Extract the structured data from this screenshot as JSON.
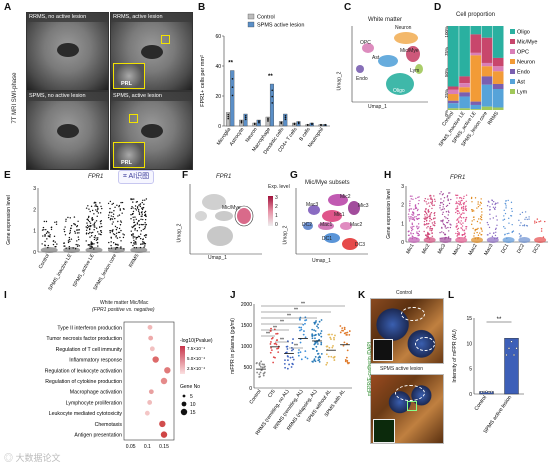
{
  "panelA": {
    "letter": "A",
    "side_label": "7T MRI SWI-phase",
    "cells": [
      {
        "title": "RRMS, no active lesion"
      },
      {
        "title": "RRMS, active lesion",
        "badge": "PRL"
      },
      {
        "title": "SPMS, no active lesion"
      },
      {
        "title": "SPMS, active lesion",
        "badge": "PRL"
      }
    ]
  },
  "panelB": {
    "letter": "B",
    "chart_data": {
      "type": "bar",
      "ylabel": "FPR1+ cells per mm²",
      "ylim": [
        0,
        60
      ],
      "yticks": [
        0,
        20,
        40,
        60
      ],
      "categories": [
        "Microglia",
        "Astrocyte",
        "Neuron",
        "Macrophage",
        "Dendritic cells",
        "CD4+ T cells",
        "B cells",
        "Neutrophil"
      ],
      "series": [
        {
          "name": "Control",
          "color": "#bdbdbd",
          "values": [
            9,
            4,
            2,
            6,
            3,
            2,
            1,
            1
          ]
        },
        {
          "name": "SPMS active lesion",
          "color": "#5b8fc7",
          "values": [
            37,
            8,
            4,
            28,
            8,
            3,
            2,
            1
          ]
        }
      ],
      "significance": [
        {
          "category": "Microglia",
          "label": "**"
        },
        {
          "category": "Macrophage",
          "label": "**"
        }
      ],
      "legend_position": "top"
    }
  },
  "panelC": {
    "letter": "C",
    "title": "White matter",
    "xlabel": "Umap_1",
    "ylabel": "Umap_2",
    "cluster_labels": [
      "Neuron",
      "OPC",
      "Mic/Mye",
      "Ast",
      "Endo",
      "Lym",
      "Oligo"
    ]
  },
  "panelD": {
    "letter": "D",
    "title": "Cell proportion",
    "chart_data": {
      "type": "bar",
      "stacked": true,
      "yticks": [
        "0%",
        "25%",
        "50%",
        "75%",
        "100%"
      ],
      "categories": [
        "Control",
        "SPMS_inactive LE",
        "SPMS_active LE",
        "SPMS_lesion core",
        "RRMS"
      ],
      "series": [
        {
          "name": "Oligo",
          "color": "#2ab0a0",
          "values": [
            72,
            60,
            10,
            14,
            38
          ]
        },
        {
          "name": "Mic/Mye",
          "color": "#c8466c",
          "values": [
            4,
            8,
            22,
            30,
            10
          ]
        },
        {
          "name": "OPC",
          "color": "#d97fb7",
          "values": [
            5,
            5,
            3,
            4,
            6
          ]
        },
        {
          "name": "Neuron",
          "color": "#f29b37",
          "values": [
            8,
            6,
            55,
            12,
            15
          ]
        },
        {
          "name": "Endo",
          "color": "#7a5fb0",
          "values": [
            3,
            5,
            4,
            10,
            6
          ]
        },
        {
          "name": "Ast",
          "color": "#56a3d9",
          "values": [
            6,
            14,
            5,
            26,
            22
          ]
        },
        {
          "name": "Lym",
          "color": "#a1c85a",
          "values": [
            2,
            2,
            1,
            4,
            3
          ]
        }
      ]
    }
  },
  "panelE": {
    "letter": "E",
    "title": "FPR1",
    "ylabel": "Gene expression level",
    "yticks": [
      "0",
      "1",
      "2",
      "3"
    ],
    "categories": [
      "Control",
      "SPMS_inactive LE",
      "SPMS_active LE",
      "SPMS_lesion core",
      "RRMS"
    ],
    "overlay_button": "AI识图"
  },
  "panelF": {
    "letter": "F",
    "title": "FPR1",
    "cluster_label": "Mic/Mye",
    "legend_title": "Exp. level",
    "legend_ticks": [
      "3",
      "2",
      "1",
      "0"
    ],
    "xlabel": "Umap_1",
    "ylabel": "Umap_2"
  },
  "panelG": {
    "letter": "G",
    "title": "Mic/Mye subsets",
    "xlabel": "Umap_1",
    "ylabel": "Umap_2",
    "cluster_labels": [
      "Mic2",
      "Mic3",
      "Mac3",
      "Mic1",
      "Mac1",
      "Mac2",
      "DC2",
      "DC1",
      "DC3"
    ]
  },
  "panelH": {
    "letter": "H",
    "title": "FPR1",
    "ylabel": "Gene expression level",
    "yticks": [
      "0",
      "1",
      "2",
      "3"
    ],
    "categories": [
      "Mic1",
      "Mic2",
      "Mic3",
      "Mac1",
      "Mac2",
      "Mac3",
      "DC1",
      "DC2",
      "DC3"
    ]
  },
  "panelI": {
    "letter": "I",
    "title_line1": "White matter Mic/Mac",
    "title_line2": "(FPR1 positive vs. negative)",
    "chart_data": {
      "type": "scatter",
      "xticks": [
        "0.05",
        "0.1",
        "0.15"
      ],
      "xlim": [
        0.03,
        0.18
      ],
      "terms": [
        {
          "label": "Type II interferon production",
          "x": 0.108,
          "size": 10,
          "color": "#f1b8b8"
        },
        {
          "label": "Tumor necrosis factor production",
          "x": 0.11,
          "size": 10,
          "color": "#eeaaaa"
        },
        {
          "label": "Regulation of T cell immunity",
          "x": 0.115,
          "size": 10,
          "color": "#f2c0c0"
        },
        {
          "label": "Inflammatory response",
          "x": 0.125,
          "size": 15,
          "color": "#dd6a6a"
        },
        {
          "label": "Regulation of leukocyte activation",
          "x": 0.16,
          "size": 15,
          "color": "#e07a7a"
        },
        {
          "label": "Regulation of cytokine production",
          "x": 0.15,
          "size": 15,
          "color": "#e58a8a"
        },
        {
          "label": "Macrophage activation",
          "x": 0.112,
          "size": 10,
          "color": "#e8a0a0"
        },
        {
          "label": "Lymphocyte proliferation",
          "x": 0.107,
          "size": 10,
          "color": "#f0bcbc"
        },
        {
          "label": "Leukocyte mediated cytotoxicity",
          "x": 0.1,
          "size": 10,
          "color": "#f4c6c6"
        },
        {
          "label": "Chemotaxis",
          "x": 0.145,
          "size": 15,
          "color": "#d14d4d"
        },
        {
          "label": "Antigen presentation",
          "x": 0.15,
          "size": 15,
          "color": "#cf4545"
        }
      ],
      "color_legend_title": "-log10(Pvalue)",
      "color_legend_ticks": [
        "7.5×10⁻⁴",
        "5.0×10⁻⁴",
        "2.5×10⁻⁴"
      ],
      "size_legend_title": "Gene No",
      "size_legend_ticks": [
        "5",
        "10",
        "15"
      ]
    }
  },
  "panelJ": {
    "letter": "J",
    "ylabel": "mFPR in plasma (pg/ml)",
    "yticks": [
      "0",
      "500",
      "1000",
      "1500",
      "2000"
    ],
    "categories": [
      "Control",
      "CIS",
      "RRMS (remitting, no AL)",
      "RRMS (remitting, AL)",
      "RRMS (relapsing, AL)",
      "SPMS without AL",
      "SPMS with AL"
    ],
    "colors": [
      "#888888",
      "#e04848",
      "#3f64c0",
      "#3a8ed8",
      "#2a7bb8",
      "#e3b85a",
      "#e07b2c"
    ],
    "medians": [
      450,
      980,
      820,
      1180,
      1120,
      900,
      1030
    ],
    "significance": [
      "**",
      "**",
      "**",
      "**",
      "**",
      "**",
      "**",
      "**"
    ]
  },
  "panelK": {
    "letter": "K",
    "top_title": "Control",
    "bottom_title": "SPMS active lesion",
    "side_label": "mFPR/E-cadherin /DAPI"
  },
  "panelL": {
    "letter": "L",
    "ylabel": "Intensity of mFPR (AU)",
    "yticks": [
      "0",
      "5",
      "10",
      "15"
    ],
    "chart_data": {
      "type": "bar",
      "categories": [
        "Control",
        "SPMS active lesion"
      ],
      "values": [
        0.5,
        11
      ],
      "ylim": [
        0,
        15
      ],
      "colors": [
        "#3d5fb8",
        "#3d5fb8"
      ],
      "significance": "**"
    }
  },
  "watermark": "大数据论文"
}
